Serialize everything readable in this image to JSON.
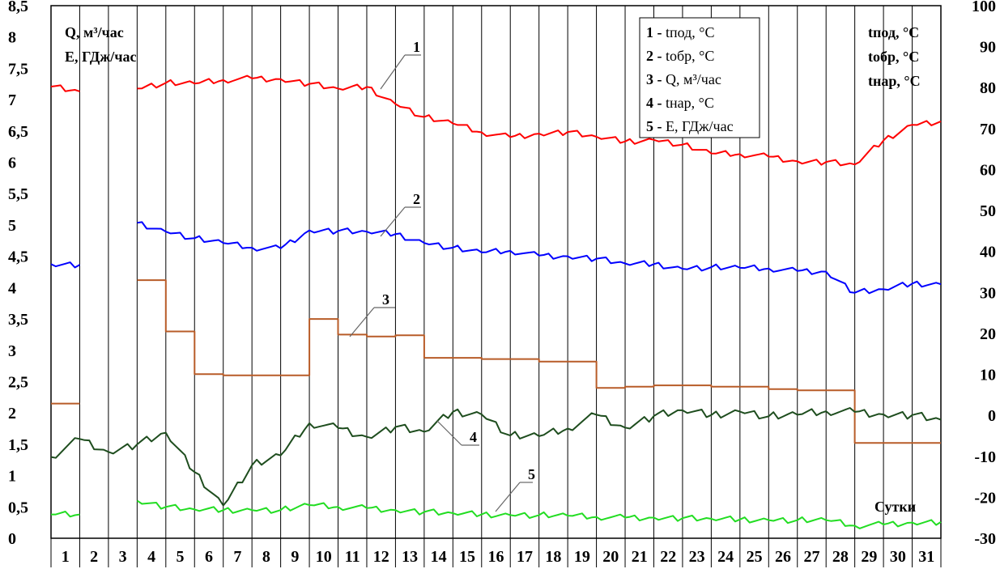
{
  "chart_data": {
    "type": "line",
    "title": "",
    "x_axis": {
      "label": "Сутки",
      "categories": [
        "1",
        "2",
        "3",
        "4",
        "5",
        "6",
        "7",
        "8",
        "9",
        "10",
        "11",
        "12",
        "13",
        "14",
        "15",
        "16",
        "17",
        "18",
        "19",
        "20",
        "21",
        "22",
        "23",
        "24",
        "25",
        "26",
        "27",
        "28",
        "29",
        "30",
        "31"
      ]
    },
    "y_left": {
      "labels": [
        "Q, м³/час",
        "E, ГДж/час"
      ],
      "range": [
        0,
        8.5
      ],
      "tick_labels": [
        "0",
        "0,5",
        "1",
        "1,5",
        "2",
        "2,5",
        "3",
        "3,5",
        "4",
        "4,5",
        "5",
        "5,5",
        "6",
        "6,5",
        "7",
        "7,5",
        "8",
        "8,5"
      ]
    },
    "y_right": {
      "labels": [
        "tпод, °C",
        "tобр, °C",
        "tнар, °C"
      ],
      "range": [
        -30,
        100
      ],
      "tick_labels": [
        "-30",
        "-20",
        "-10",
        "0",
        "10",
        "20",
        "30",
        "40",
        "50",
        "60",
        "70",
        "80",
        "90",
        "100"
      ]
    },
    "grid": "vertical lines at day boundaries",
    "legend": {
      "position": "top-right",
      "items": [
        {
          "num": "1",
          "text": "tпод, °C",
          "color": "#ff0000"
        },
        {
          "num": "2",
          "text": "tобр, °C",
          "color": "#0000ff"
        },
        {
          "num": "3",
          "text": "Q, м³/час",
          "color": "#b85c28"
        },
        {
          "num": "4",
          "text": "tнар, °C",
          "color": "#1e4d1e"
        },
        {
          "num": "5",
          "text": "E, ГДж/час",
          "color": "#22dd22"
        }
      ]
    },
    "series": [
      {
        "name": "1 - tпод, °C",
        "axis": "right",
        "color": "#ff0000",
        "points": [
          [
            0,
            80
          ],
          [
            1,
            79
          ],
          [
            2,
            null
          ],
          [
            3,
            80
          ],
          [
            4,
            81
          ],
          [
            5,
            81
          ],
          [
            6,
            82
          ],
          [
            7,
            82
          ],
          [
            8,
            82
          ],
          [
            9,
            81
          ],
          [
            10,
            80
          ],
          [
            11,
            80
          ],
          [
            12,
            76
          ],
          [
            13,
            73
          ],
          [
            14,
            71
          ],
          [
            15,
            69
          ],
          [
            16,
            68
          ],
          [
            17,
            69
          ],
          [
            18,
            69
          ],
          [
            19,
            68
          ],
          [
            20,
            67
          ],
          [
            21,
            67
          ],
          [
            22,
            66
          ],
          [
            23,
            64
          ],
          [
            24,
            64
          ],
          [
            25,
            63
          ],
          [
            26,
            62
          ],
          [
            27,
            62
          ],
          [
            28,
            61
          ],
          [
            29,
            67
          ],
          [
            30,
            71
          ],
          [
            31,
            72
          ]
        ]
      },
      {
        "name": "2 - tобр, °C",
        "axis": "right",
        "color": "#0000ff",
        "points": [
          [
            0,
            37
          ],
          [
            1,
            37
          ],
          [
            2,
            null
          ],
          [
            3,
            47
          ],
          [
            4,
            45
          ],
          [
            5,
            43
          ],
          [
            6,
            42
          ],
          [
            7,
            41
          ],
          [
            8,
            41
          ],
          [
            9,
            45
          ],
          [
            10,
            45
          ],
          [
            11,
            45
          ],
          [
            12,
            44
          ],
          [
            13,
            42
          ],
          [
            14,
            41
          ],
          [
            15,
            40
          ],
          [
            16,
            40
          ],
          [
            17,
            39
          ],
          [
            18,
            39
          ],
          [
            19,
            38
          ],
          [
            20,
            37
          ],
          [
            21,
            37
          ],
          [
            22,
            36
          ],
          [
            23,
            36
          ],
          [
            24,
            36
          ],
          [
            25,
            36
          ],
          [
            26,
            35
          ],
          [
            27,
            35
          ],
          [
            28,
            30
          ],
          [
            29,
            31
          ],
          [
            30,
            32
          ],
          [
            31,
            32
          ]
        ]
      },
      {
        "name": "3 - Q, м³/час",
        "axis": "left",
        "color": "#b85c28",
        "points": [
          [
            0,
            2.15
          ],
          [
            1,
            2.15
          ],
          [
            2,
            null
          ],
          [
            3,
            4.12
          ],
          [
            4,
            3.3
          ],
          [
            5,
            2.62
          ],
          [
            6,
            2.6
          ],
          [
            7,
            2.6
          ],
          [
            8,
            2.6
          ],
          [
            9,
            3.5
          ],
          [
            10,
            3.25
          ],
          [
            11,
            3.22
          ],
          [
            12,
            3.24
          ],
          [
            13,
            2.88
          ],
          [
            14,
            2.88
          ],
          [
            15,
            2.86
          ],
          [
            16,
            2.86
          ],
          [
            17,
            2.82
          ],
          [
            18,
            2.82
          ],
          [
            19,
            2.4
          ],
          [
            20,
            2.42
          ],
          [
            21,
            2.44
          ],
          [
            22,
            2.44
          ],
          [
            23,
            2.42
          ],
          [
            24,
            2.42
          ],
          [
            25,
            2.38
          ],
          [
            26,
            2.36
          ],
          [
            27,
            2.36
          ],
          [
            28,
            1.52
          ],
          [
            29,
            1.52
          ],
          [
            30,
            1.52
          ],
          [
            31,
            1.52
          ]
        ]
      },
      {
        "name": "4 - tнар, °C",
        "axis": "right",
        "color": "#1e4d1e",
        "points": [
          [
            0,
            -10
          ],
          [
            1,
            -6
          ],
          [
            2,
            -9
          ],
          [
            3,
            -7
          ],
          [
            4,
            -4
          ],
          [
            5,
            -14
          ],
          [
            6,
            -22
          ],
          [
            7,
            -12
          ],
          [
            8,
            -10
          ],
          [
            9,
            -2
          ],
          [
            10,
            -3
          ],
          [
            11,
            -5
          ],
          [
            12,
            -3
          ],
          [
            13,
            -4
          ],
          [
            14,
            1
          ],
          [
            15,
            0
          ],
          [
            16,
            -5
          ],
          [
            17,
            -5
          ],
          [
            18,
            -3
          ],
          [
            19,
            0
          ],
          [
            20,
            -3
          ],
          [
            21,
            0
          ],
          [
            22,
            1
          ],
          [
            23,
            0
          ],
          [
            24,
            1
          ],
          [
            25,
            0
          ],
          [
            26,
            0
          ],
          [
            27,
            1
          ],
          [
            28,
            1
          ],
          [
            29,
            0
          ],
          [
            30,
            0
          ],
          [
            31,
            -1
          ]
        ]
      },
      {
        "name": "5 - E, ГДж/час",
        "axis": "left",
        "color": "#22dd22",
        "points": [
          [
            0,
            0.38
          ],
          [
            1,
            0.38
          ],
          [
            2,
            null
          ],
          [
            3,
            0.6
          ],
          [
            4,
            0.5
          ],
          [
            5,
            0.46
          ],
          [
            6,
            0.45
          ],
          [
            7,
            0.45
          ],
          [
            8,
            0.45
          ],
          [
            9,
            0.53
          ],
          [
            10,
            0.5
          ],
          [
            11,
            0.48
          ],
          [
            12,
            0.45
          ],
          [
            13,
            0.42
          ],
          [
            14,
            0.4
          ],
          [
            15,
            0.38
          ],
          [
            16,
            0.37
          ],
          [
            17,
            0.37
          ],
          [
            18,
            0.36
          ],
          [
            19,
            0.34
          ],
          [
            20,
            0.33
          ],
          [
            21,
            0.33
          ],
          [
            22,
            0.32
          ],
          [
            23,
            0.31
          ],
          [
            24,
            0.3
          ],
          [
            25,
            0.29
          ],
          [
            26,
            0.29
          ],
          [
            27,
            0.29
          ],
          [
            28,
            0.2
          ],
          [
            29,
            0.22
          ],
          [
            30,
            0.25
          ],
          [
            31,
            0.26
          ]
        ]
      }
    ],
    "annotations": [
      {
        "label": "1",
        "series": "1"
      },
      {
        "label": "2",
        "series": "2"
      },
      {
        "label": "3",
        "series": "3"
      },
      {
        "label": "4",
        "series": "4"
      },
      {
        "label": "5",
        "series": "5"
      }
    ]
  },
  "labels": {
    "left_unit_q": "Q, м³/час",
    "left_unit_e": "E, ГДж/час",
    "right_unit_1": "tпод, °C",
    "right_unit_2": "tобр, °C",
    "right_unit_3": "tнар, °C",
    "x_title": "Сутки"
  }
}
